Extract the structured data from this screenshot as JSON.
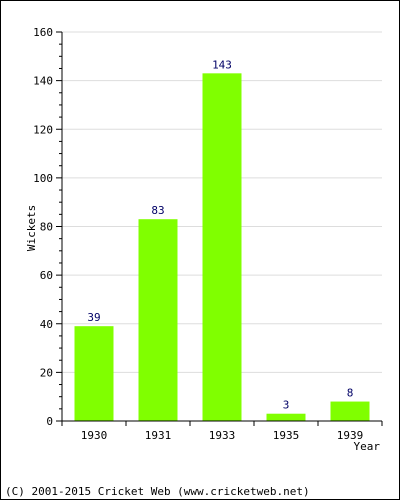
{
  "chart_data": {
    "type": "bar",
    "categories": [
      "1930",
      "1931",
      "1933",
      "1935",
      "1939"
    ],
    "values": [
      39,
      83,
      143,
      3,
      8
    ],
    "xlabel": "Year",
    "ylabel": "Wickets",
    "ylim": [
      0,
      160
    ],
    "yticks": [
      0,
      20,
      40,
      60,
      80,
      100,
      120,
      140,
      160
    ],
    "grid": true,
    "legend": "none",
    "bar_color": "#80ff00",
    "label_color": "#000066"
  },
  "footer": {
    "credit": "(C) 2001-2015 Cricket Web (www.cricketweb.net)"
  }
}
